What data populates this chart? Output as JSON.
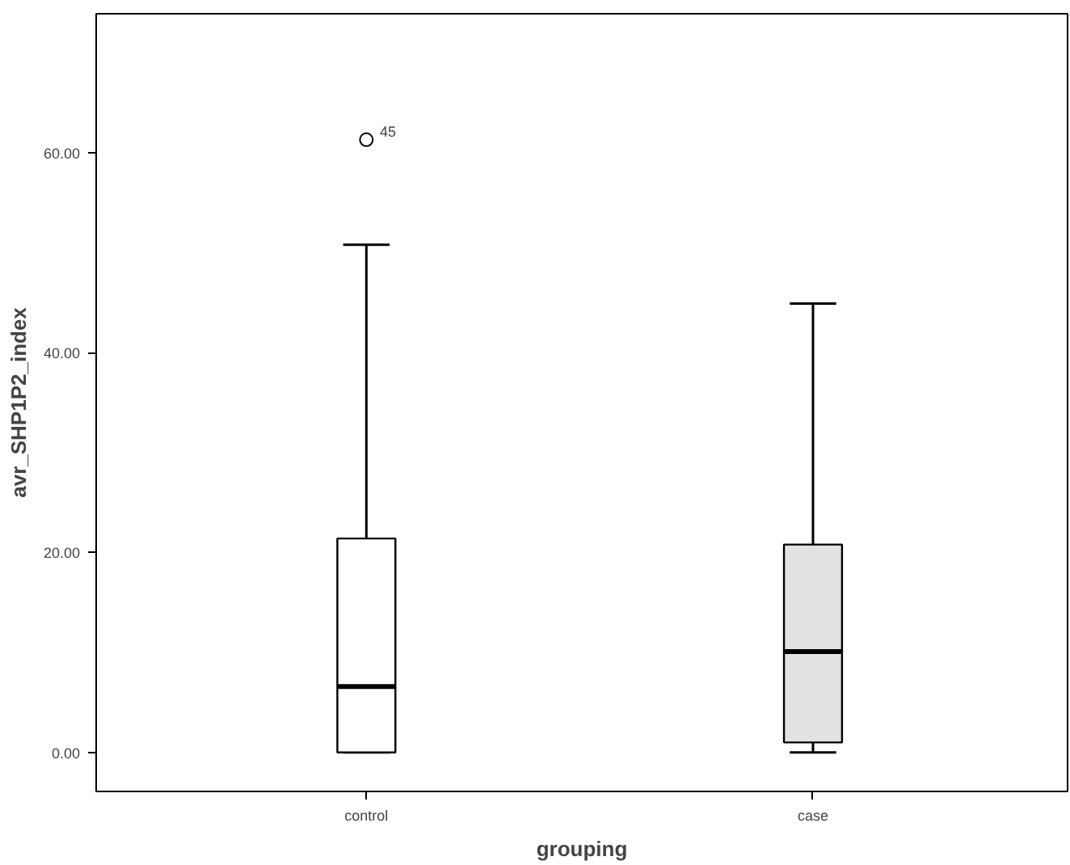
{
  "chart_data": {
    "type": "box",
    "xlabel": "grouping",
    "ylabel": "avr_SHP1P2_index",
    "categories": [
      "control",
      "case"
    ],
    "boxes": [
      {
        "low": 0,
        "q1": 0,
        "median": 6.6,
        "q3": 21.4,
        "high": 50.8,
        "outliers": [
          61.3
        ]
      },
      {
        "low": 0,
        "q1": 1.0,
        "median": 10.1,
        "q3": 20.8,
        "high": 44.9
      }
    ],
    "colors": [
      "#ffffff",
      "#e2e2e2"
    ],
    "ylim": [
      -3.9,
      73.9
    ],
    "yticks": [
      {
        "value": 0,
        "label": "0.00"
      },
      {
        "value": 20,
        "label": "20.00"
      },
      {
        "value": 40,
        "label": "40.00"
      },
      {
        "value": 60,
        "label": "60.00"
      }
    ],
    "annotations": [
      "45"
    ],
    "grid": false
  }
}
